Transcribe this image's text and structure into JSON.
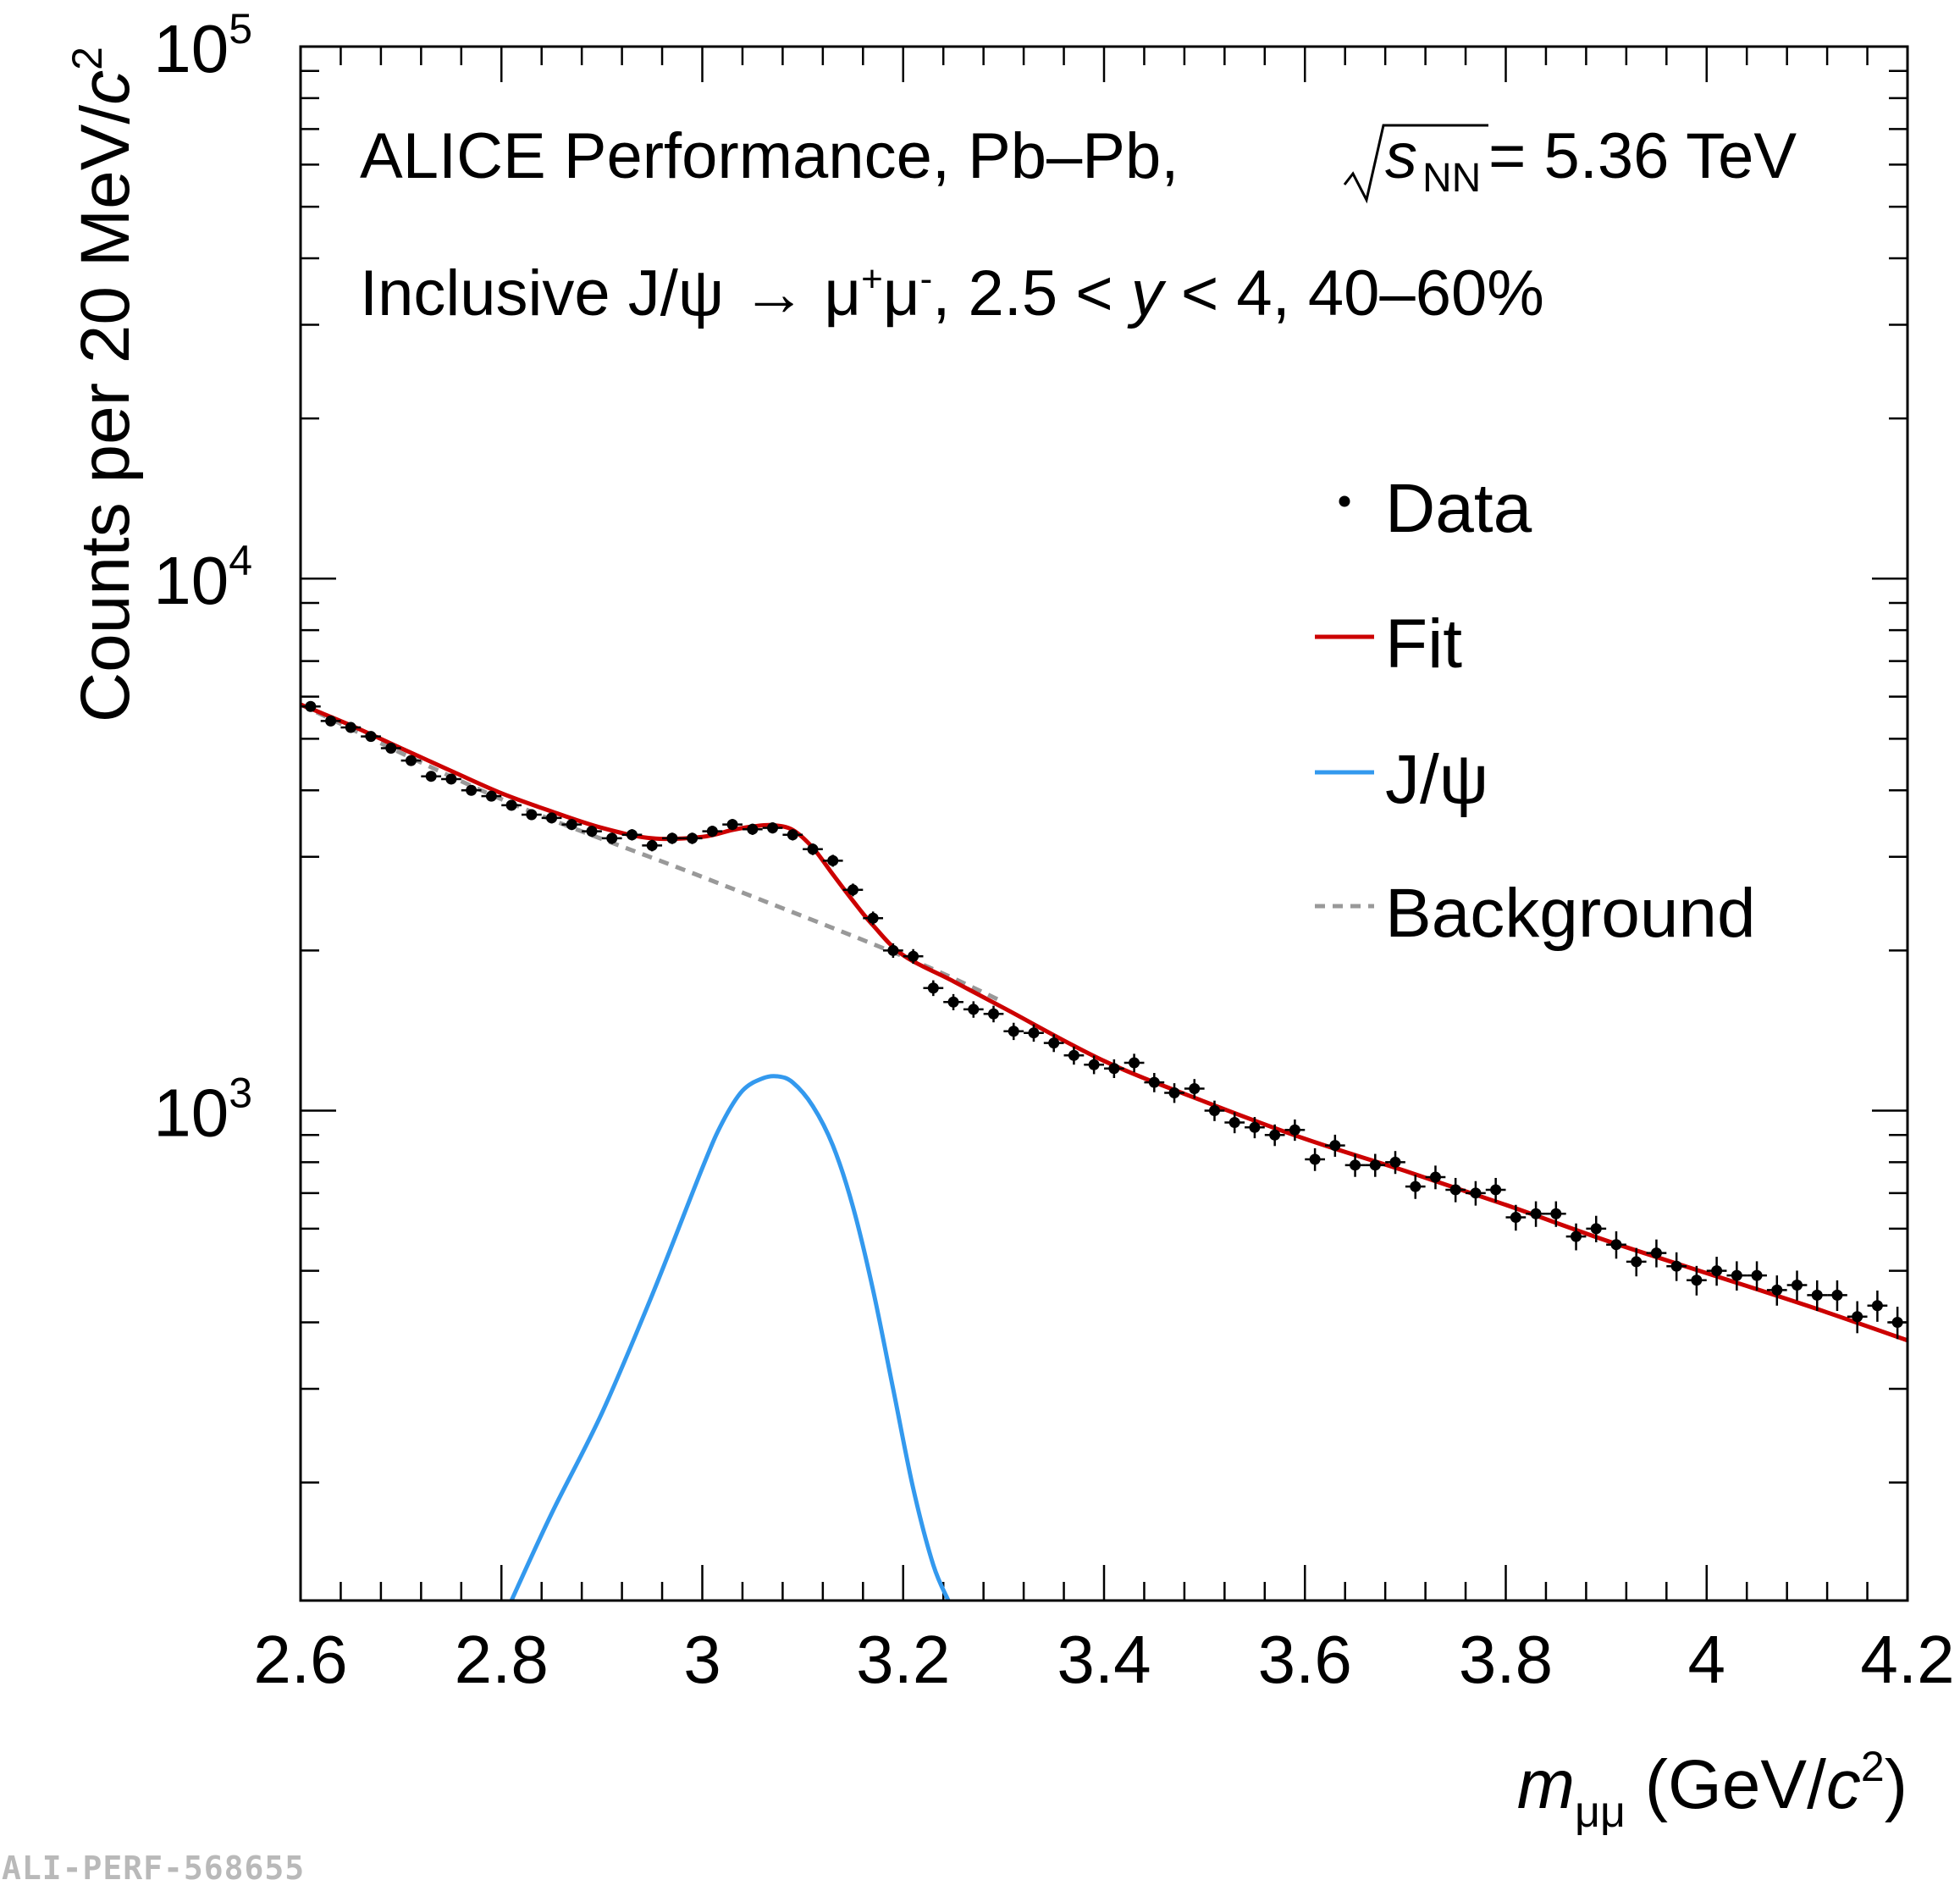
{
  "chart_data": {
    "type": "scatter",
    "log_y": true,
    "xlim": [
      2.6,
      4.2
    ],
    "ylim": [
      120,
      100000
    ],
    "xlabel": {
      "var": "m",
      "sub": "μμ",
      "unit_open": " (GeV/",
      "unit_c": "c",
      "unit_sup": "2",
      "unit_close": ")"
    },
    "ylabel": {
      "prefix": "Counts per 20 MeV/",
      "c": "c",
      "sup": "2"
    },
    "x_ticks": [
      "2.6",
      "2.8",
      "3",
      "3.2",
      "3.4",
      "3.6",
      "3.8",
      "4",
      "4.2"
    ],
    "y_ticks": [
      {
        "base": "10",
        "exp": "3"
      },
      {
        "base": "10",
        "exp": "4"
      },
      {
        "base": "10",
        "exp": "5"
      }
    ],
    "header": {
      "line1_prefix": "ALICE Performance, Pb–Pb, ",
      "line1_var": "s",
      "line1_sub": "NN",
      "line1_suffix": " = 5.36 TeV",
      "line2_prefix": "Inclusive J/ψ → μ",
      "line2_sup1": "+",
      "line2_mid": "μ",
      "line2_sup2": "-",
      "line2_range": ", 2.5 < ",
      "line2_var": "y",
      "line2_suffix": " < 4, 40–60%"
    },
    "legend": {
      "position": "right",
      "entries": [
        {
          "label": "Data",
          "style": "marker"
        },
        {
          "label": "Fit",
          "style": "line"
        },
        {
          "label": "J/ψ",
          "style": "line"
        },
        {
          "label": "Background",
          "style": "dashed"
        }
      ]
    },
    "colors": {
      "data": "#000000",
      "fit": "#cc0000",
      "signal": "#3399ee",
      "background": "#999999"
    },
    "series": [
      {
        "name": "Data",
        "x": [
          2.61,
          2.63,
          2.65,
          2.67,
          2.69,
          2.71,
          2.73,
          2.75,
          2.77,
          2.79,
          2.81,
          2.83,
          2.85,
          2.87,
          2.89,
          2.91,
          2.93,
          2.95,
          2.97,
          2.99,
          3.01,
          3.03,
          3.05,
          3.07,
          3.09,
          3.11,
          3.13,
          3.15,
          3.17,
          3.19,
          3.21,
          3.23,
          3.25,
          3.27,
          3.29,
          3.31,
          3.33,
          3.35,
          3.37,
          3.39,
          3.41,
          3.43,
          3.45,
          3.47,
          3.49,
          3.51,
          3.53,
          3.55,
          3.57,
          3.59,
          3.61,
          3.63,
          3.65,
          3.67,
          3.69,
          3.71,
          3.73,
          3.75,
          3.77,
          3.79,
          3.81,
          3.83,
          3.85,
          3.87,
          3.89,
          3.91,
          3.93,
          3.95,
          3.97,
          3.99,
          4.01,
          4.03,
          4.05,
          4.07,
          4.09,
          4.11,
          4.13,
          4.15,
          4.17,
          4.19
        ],
        "values": [
          5750,
          5400,
          5250,
          5050,
          4800,
          4550,
          4250,
          4200,
          4000,
          3900,
          3750,
          3600,
          3550,
          3450,
          3350,
          3250,
          3300,
          3150,
          3250,
          3250,
          3350,
          3450,
          3380,
          3400,
          3300,
          3100,
          2950,
          2600,
          2300,
          2000,
          1950,
          1700,
          1600,
          1550,
          1520,
          1410,
          1400,
          1340,
          1270,
          1220,
          1200,
          1230,
          1130,
          1080,
          1100,
          1000,
          950,
          930,
          900,
          920,
          810,
          860,
          790,
          790,
          800,
          720,
          750,
          710,
          700,
          710,
          630,
          640,
          640,
          580,
          600,
          560,
          520,
          540,
          510,
          480,
          500,
          490,
          490,
          460,
          470,
          450,
          450,
          410,
          430,
          400
        ]
      },
      {
        "name": "Fit",
        "x": [
          2.6,
          2.65,
          2.7,
          2.75,
          2.8,
          2.85,
          2.9,
          2.95,
          3.0,
          3.03,
          3.05,
          3.07,
          3.09,
          3.11,
          3.13,
          3.15,
          3.17,
          3.2,
          3.25,
          3.3,
          3.4,
          3.5,
          3.6,
          3.7,
          3.8,
          3.9,
          4.0,
          4.1,
          4.2
        ],
        "values": [
          5800,
          5300,
          4800,
          4350,
          3950,
          3650,
          3400,
          3250,
          3270,
          3370,
          3420,
          3440,
          3370,
          3120,
          2780,
          2480,
          2230,
          1960,
          1750,
          1560,
          1240,
          1040,
          885,
          770,
          665,
          570,
          495,
          430,
          370
        ]
      },
      {
        "name": "J/ψ",
        "x": [
          2.81,
          2.85,
          2.9,
          2.95,
          3.0,
          3.02,
          3.04,
          3.06,
          3.075,
          3.09,
          3.11,
          3.13,
          3.15,
          3.17,
          3.19,
          3.21,
          3.23,
          3.245
        ],
        "values": [
          120,
          175,
          270,
          450,
          780,
          950,
          1090,
          1150,
          1160,
          1130,
          1020,
          860,
          660,
          460,
          300,
          195,
          140,
          120
        ]
      },
      {
        "name": "Background",
        "x": [
          2.6,
          2.8,
          3.0,
          3.2,
          3.3
        ],
        "values": [
          5800,
          3850,
          2750,
          1950,
          1600
        ]
      }
    ]
  },
  "watermark": "ALI-PERF-568655"
}
